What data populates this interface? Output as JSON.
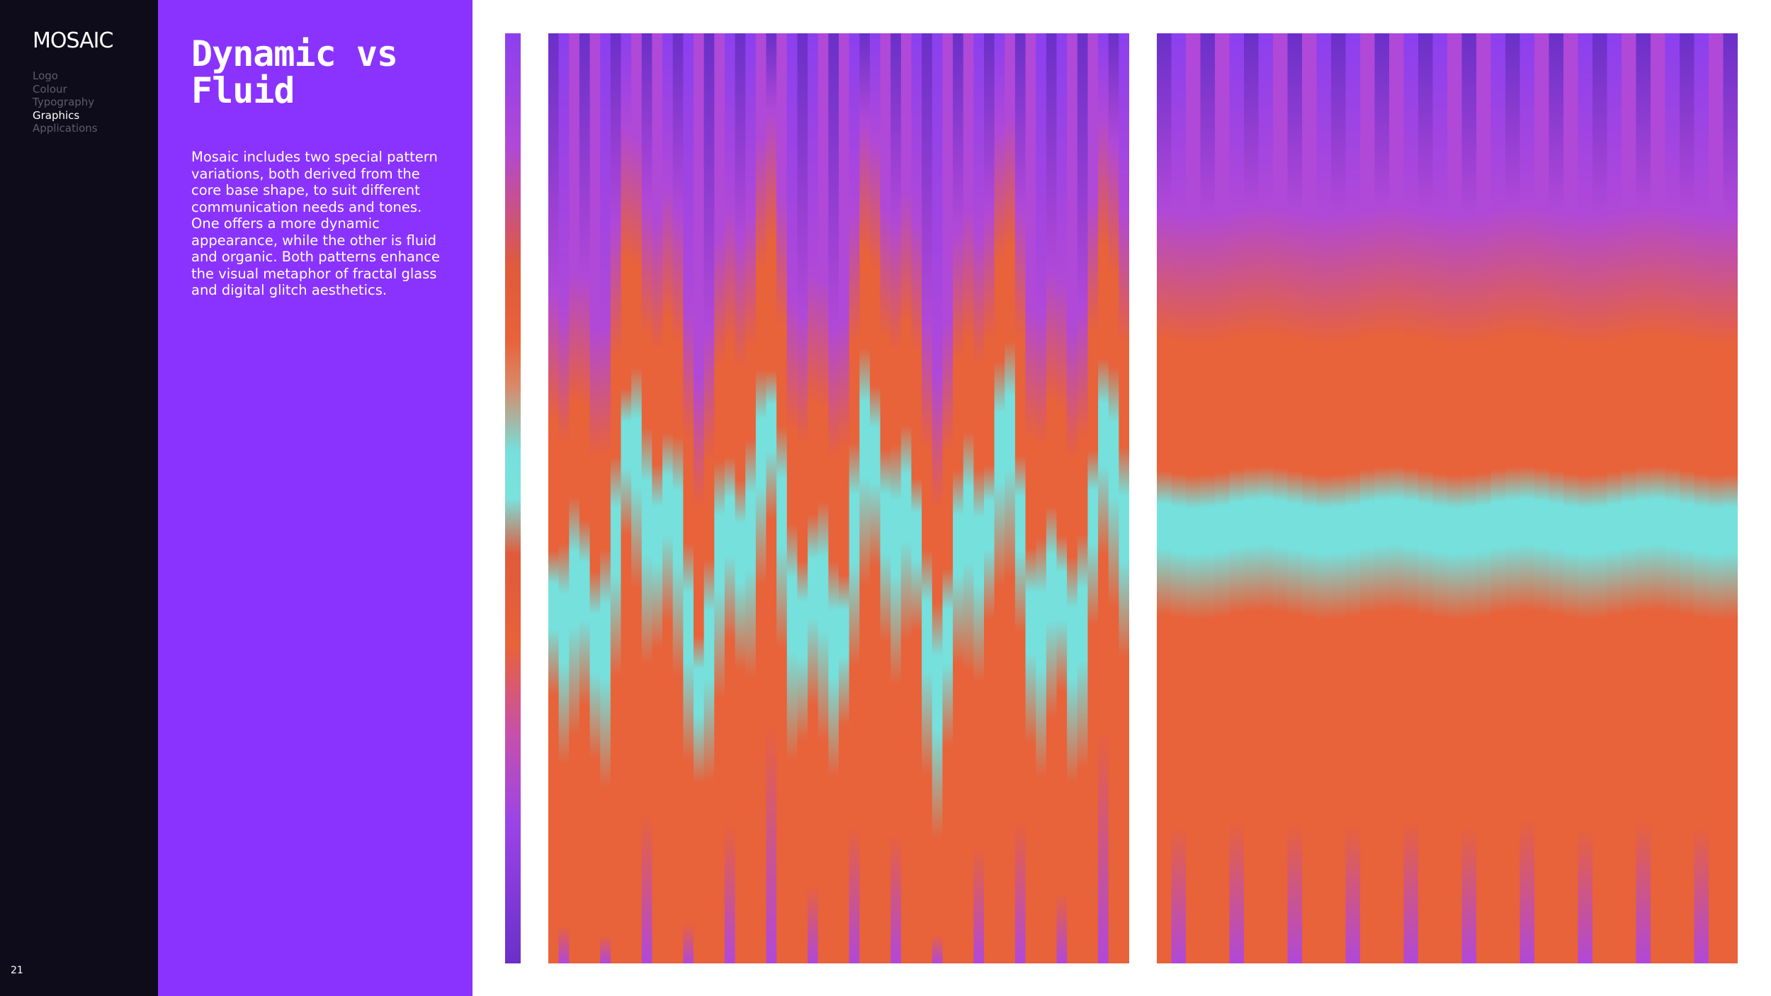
{
  "brand": {
    "logo_text": "MOSAIC"
  },
  "nav": {
    "items": [
      {
        "label": "Logo",
        "active": false
      },
      {
        "label": "Colour",
        "active": false
      },
      {
        "label": "Typography",
        "active": false
      },
      {
        "label": "Graphics",
        "active": true
      },
      {
        "label": "Applications",
        "active": false
      }
    ]
  },
  "page": {
    "number": "21"
  },
  "content": {
    "title": "Dynamic vs Fluid",
    "body": "Mosaic includes two special pattern variations, both derived from the core base shape, to suit different communication needs and tones. One offers a more dynamic appearance, while the other is fluid and organic. Both patterns enhance the visual metaphor of fractal glass and digital glitch aesthetics."
  },
  "colors": {
    "sidebar_bg": "#0e0c1a",
    "panel_bg": "#8a33ff",
    "purple": "#8b40ee",
    "violet": "#b048d8",
    "orange": "#e8623a",
    "cyan": "#76e0dc",
    "page_bg": "#ffffff"
  },
  "graphics": [
    {
      "name": "dynamic-pattern"
    },
    {
      "name": "fluid-pattern"
    }
  ]
}
